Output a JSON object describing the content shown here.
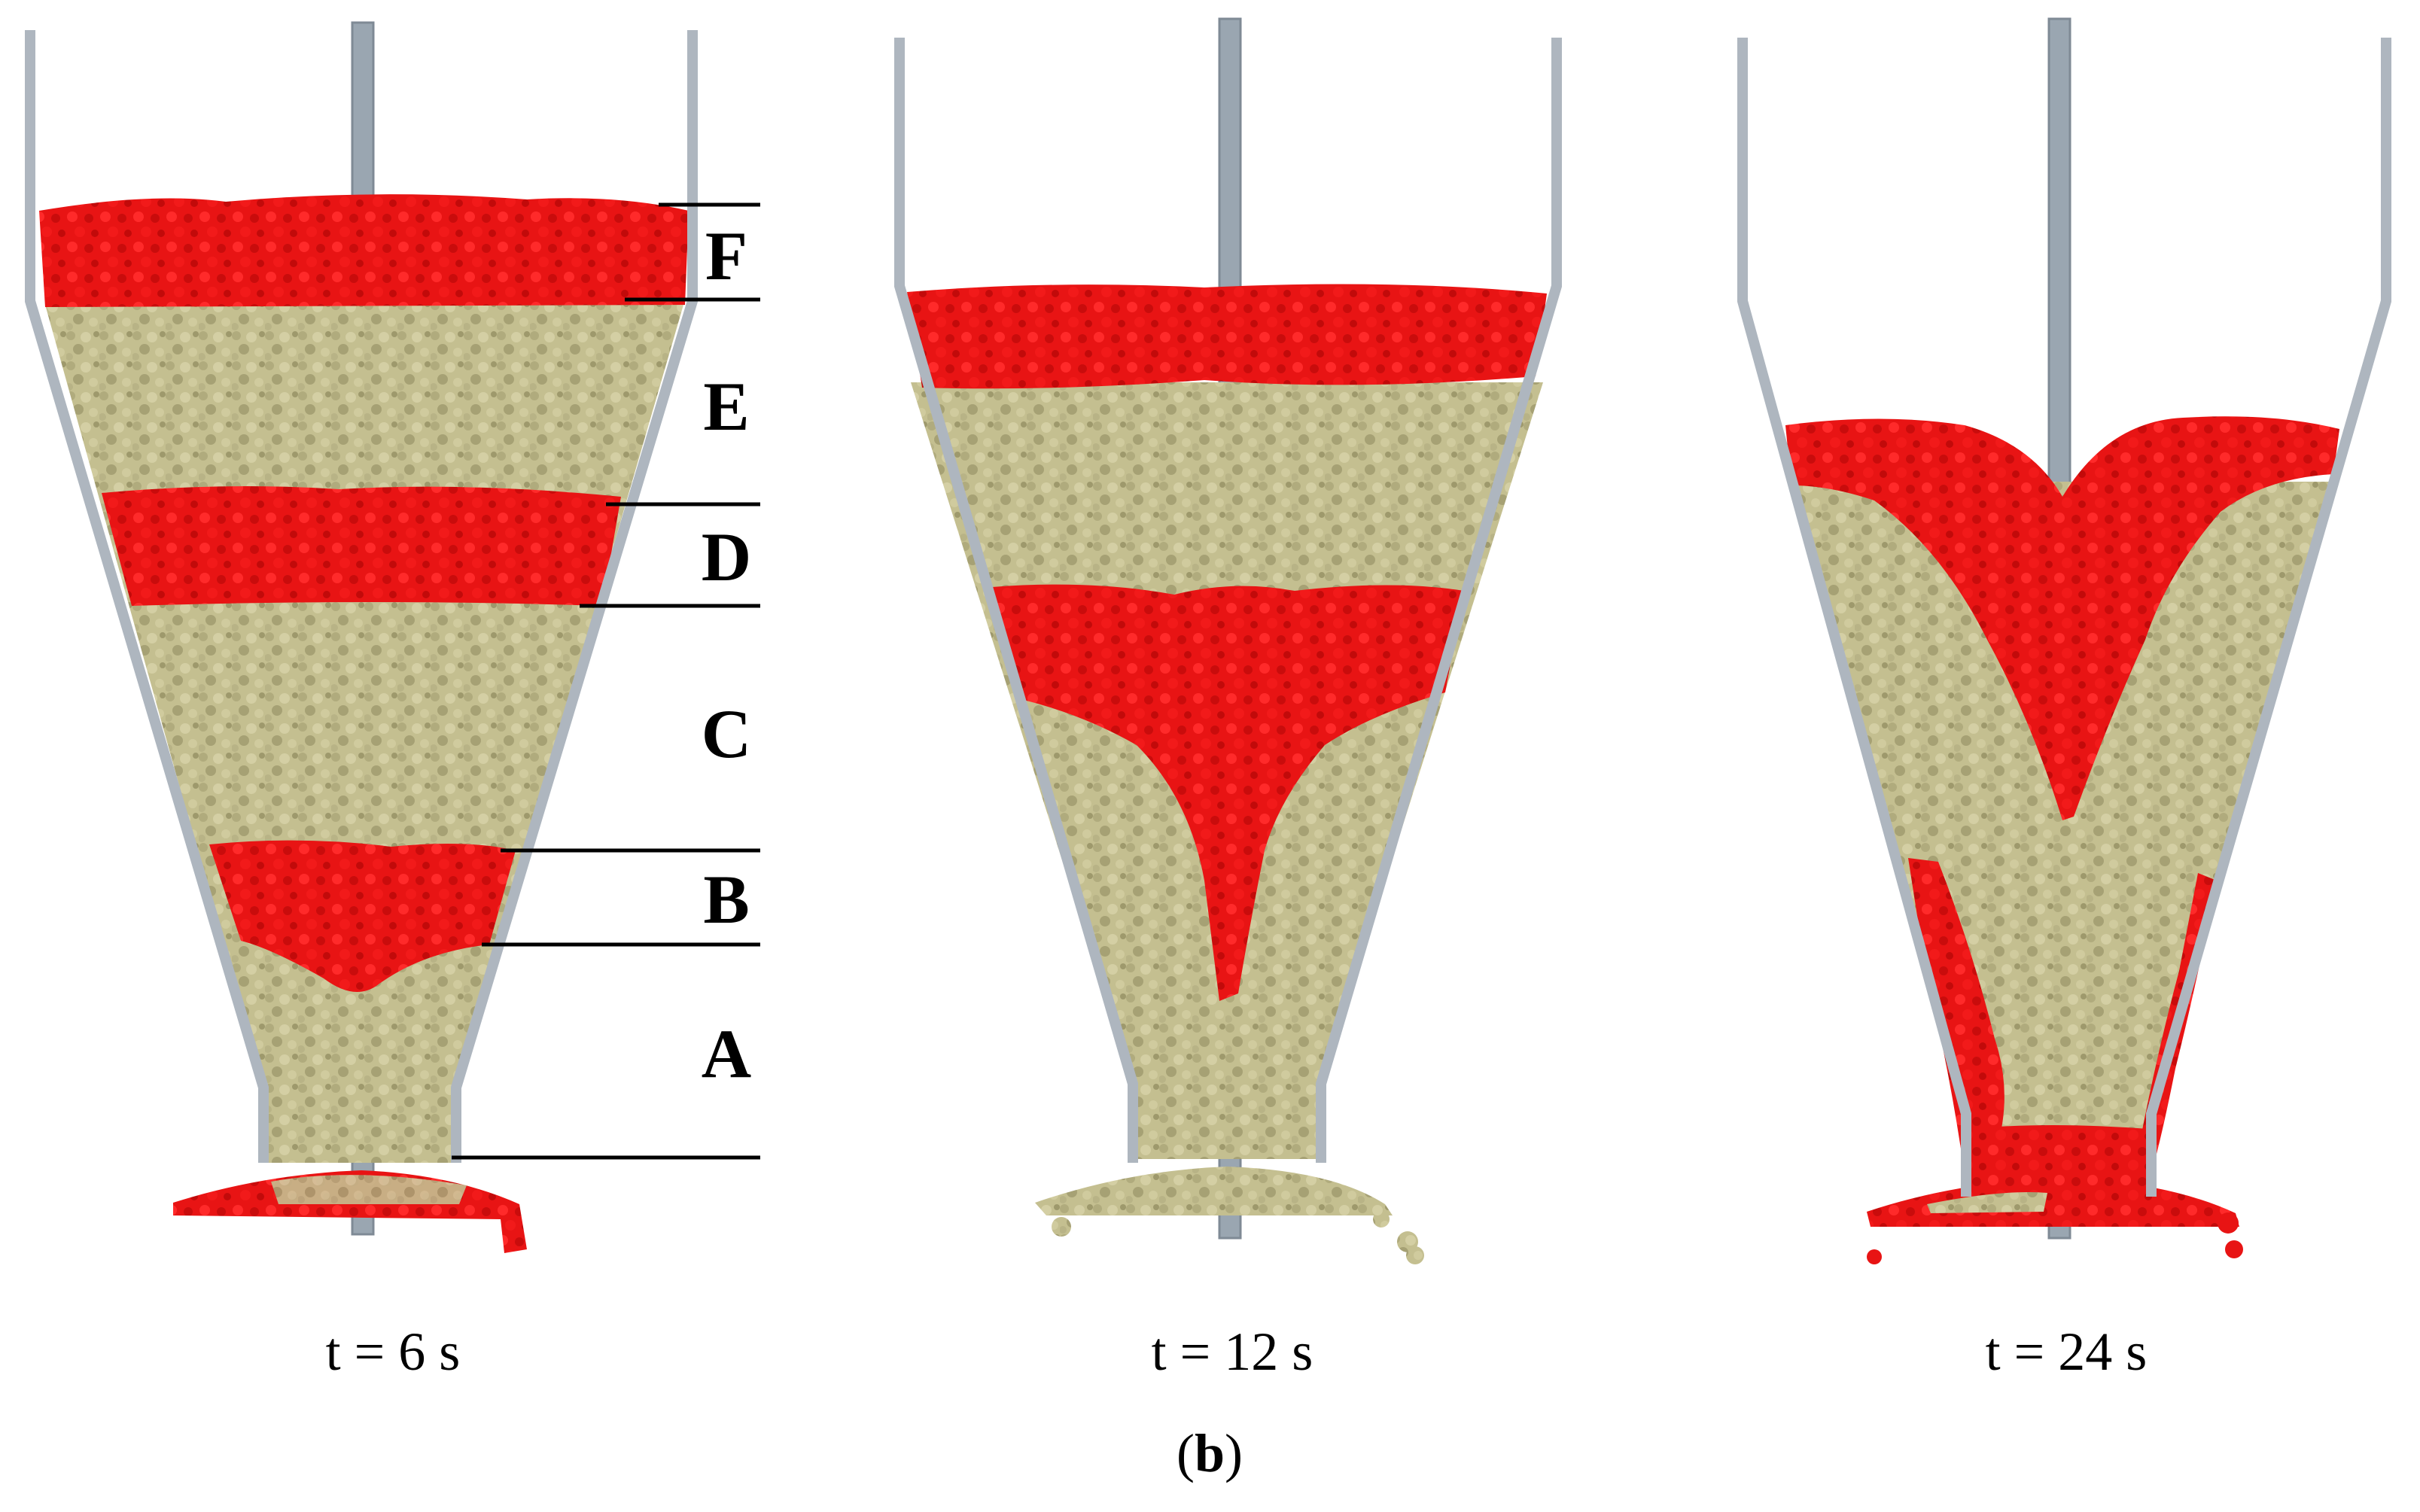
{
  "figure": {
    "panel_label_open": "(",
    "panel_label_letter": "b",
    "panel_label_close": ")",
    "colors": {
      "tracer": "#e81212",
      "tracer_dark": "#b30000",
      "bulk": "#c2bd8e",
      "bulk_dark": "#8f8a62",
      "wall": "#b9c0c8",
      "shaft": "#9aa6b1"
    },
    "panels": [
      {
        "time_label": "t = 6 s",
        "layer_labels": [
          "F",
          "E",
          "D",
          "C",
          "B",
          "A"
        ]
      },
      {
        "time_label": "t = 12 s"
      },
      {
        "time_label": "t = 24 s"
      }
    ]
  }
}
